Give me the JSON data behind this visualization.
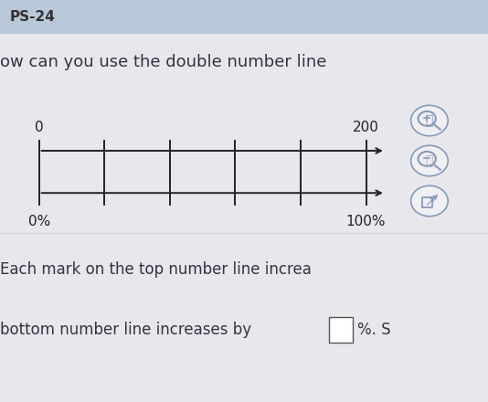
{
  "bg_color": "#e8e8ec",
  "header_color": "#b8c8d8",
  "header_text": "PS-24",
  "header_fontsize": 11,
  "question_text": "ow can you use the double number line",
  "question_fontsize": 13,
  "top_label_start": "0",
  "top_label_end": "200",
  "bottom_label_start": "0%",
  "bottom_label_end": "100%",
  "num_ticks": 5,
  "line_color": "#222222",
  "footer_text1": "Each mark on the top number line increa",
  "footer_text2": "bottom number line increases by",
  "footer_fontsize": 12,
  "percent_text": "%. S",
  "icon_color": "#8899bb",
  "diagram_bg": "#dcdce4"
}
